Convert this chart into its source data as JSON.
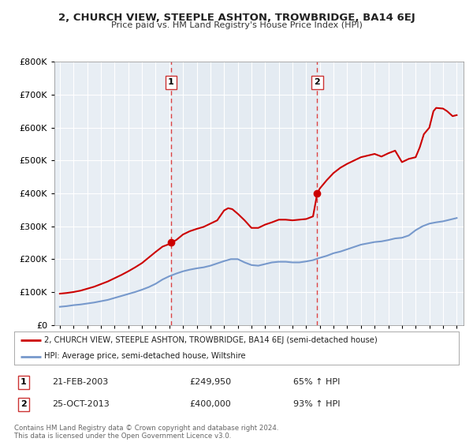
{
  "title": "2, CHURCH VIEW, STEEPLE ASHTON, TROWBRIDGE, BA14 6EJ",
  "subtitle": "Price paid vs. HM Land Registry's House Price Index (HPI)",
  "legend_line1": "2, CHURCH VIEW, STEEPLE ASHTON, TROWBRIDGE, BA14 6EJ (semi-detached house)",
  "legend_line2": "HPI: Average price, semi-detached house, Wiltshire",
  "sale1_label": "1",
  "sale1_date": "21-FEB-2003",
  "sale1_price": "£249,950",
  "sale1_hpi": "65% ↑ HPI",
  "sale1_year": 2003.12,
  "sale1_value": 249950,
  "sale2_label": "2",
  "sale2_date": "25-OCT-2013",
  "sale2_price": "£400,000",
  "sale2_hpi": "93% ↑ HPI",
  "sale2_year": 2013.81,
  "sale2_value": 400000,
  "red_color": "#cc0000",
  "blue_color": "#7799cc",
  "background_chart": "#e8eef4",
  "grid_color": "#ffffff",
  "footer_text1": "Contains HM Land Registry data © Crown copyright and database right 2024.",
  "footer_text2": "This data is licensed under the Open Government Licence v3.0.",
  "ylim": [
    0,
    800000
  ],
  "yticks": [
    0,
    100000,
    200000,
    300000,
    400000,
    500000,
    600000,
    700000,
    800000
  ],
  "xlim_start": 1994.6,
  "xlim_end": 2024.5
}
